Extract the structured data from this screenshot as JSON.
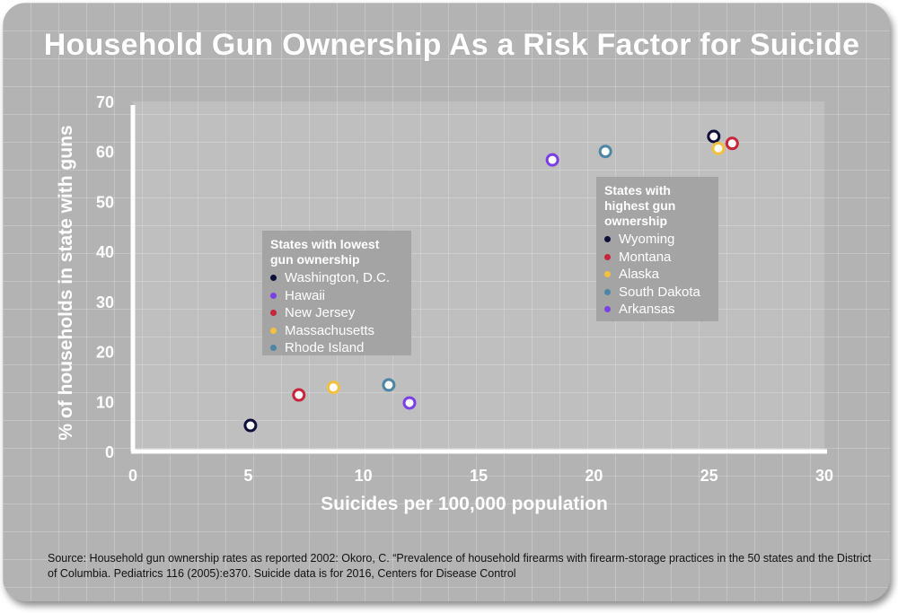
{
  "title": "Household Gun Ownership As a Risk Factor for Suicide",
  "source": "Source: Household gun ownership rates as reported 2002: Okoro, C. “Prevalence of household firearms with firearm-storage practices in the 50 states and the District of Columbia. Pediatrics 116 (2005):e370. Suicide data is for 2016, Centers for Disease Control",
  "legend_low": {
    "title_lines": [
      "States with lowest",
      "gun ownership"
    ],
    "items": [
      {
        "label": "Washington, D.C.",
        "color": "#0f0f3c"
      },
      {
        "label": "Hawaii",
        "color": "#7b3fe4"
      },
      {
        "label": "New Jersey",
        "color": "#c8243a"
      },
      {
        "label": "Massachusetts",
        "color": "#f3c040"
      },
      {
        "label": "Rhode Island",
        "color": "#4d86a5"
      }
    ]
  },
  "legend_high": {
    "title_lines": [
      "States with",
      "highest gun",
      "ownership"
    ],
    "items": [
      {
        "label": "Wyoming",
        "color": "#0f0f3c"
      },
      {
        "label": "Montana",
        "color": "#c8243a"
      },
      {
        "label": "Alaska",
        "color": "#f3c040"
      },
      {
        "label": "South Dakota",
        "color": "#4d86a5"
      },
      {
        "label": "Arkansas",
        "color": "#7b3fe4"
      }
    ]
  },
  "chart_data": {
    "type": "scatter",
    "title": "Household Gun Ownership As a Risk Factor for Suicide",
    "xlabel": "Suicides per 100,000 population",
    "ylabel": "% of households in state with guns",
    "xlim": [
      0,
      30
    ],
    "ylim": [
      0,
      70
    ],
    "xticks": [
      0,
      5,
      10,
      15,
      20,
      25,
      30
    ],
    "yticks": [
      0,
      10,
      20,
      30,
      40,
      50,
      60,
      70
    ],
    "grid": true,
    "points": [
      {
        "label": "Washington, D.C.",
        "x": 5.1,
        "y": 5.2,
        "color": "#0f0f3c"
      },
      {
        "label": "New Jersey",
        "x": 7.2,
        "y": 11.3,
        "color": "#c8243a"
      },
      {
        "label": "Massachusetts",
        "x": 8.7,
        "y": 12.8,
        "color": "#f3c040"
      },
      {
        "label": "Rhode Island",
        "x": 11.1,
        "y": 13.3,
        "color": "#4d86a5"
      },
      {
        "label": "Hawaii",
        "x": 12.0,
        "y": 9.7,
        "color": "#7b3fe4"
      },
      {
        "label": "Arkansas",
        "x": 18.2,
        "y": 58.3,
        "color": "#7b3fe4"
      },
      {
        "label": "South Dakota",
        "x": 20.5,
        "y": 60.0,
        "color": "#4d86a5"
      },
      {
        "label": "Wyoming",
        "x": 25.2,
        "y": 63.0,
        "color": "#0f0f3c"
      },
      {
        "label": "Alaska",
        "x": 25.4,
        "y": 60.6,
        "color": "#f3c040"
      },
      {
        "label": "Montana",
        "x": 26.0,
        "y": 61.6,
        "color": "#c8243a"
      }
    ]
  }
}
